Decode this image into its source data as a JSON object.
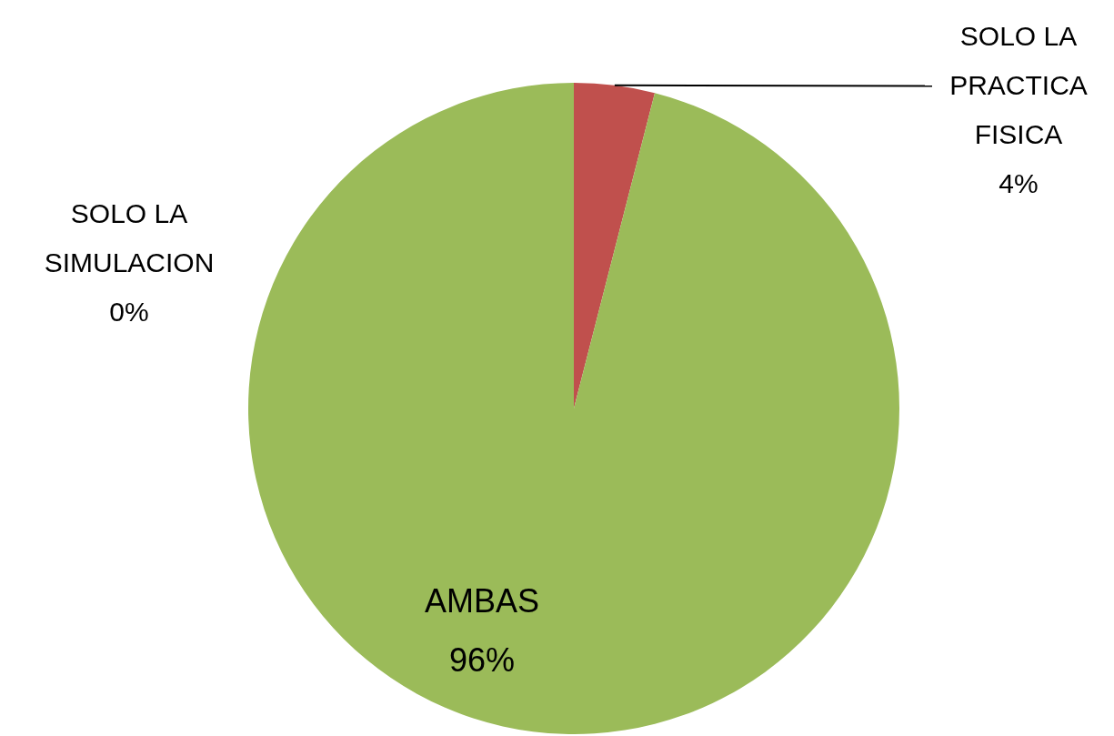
{
  "chart_data": {
    "type": "pie",
    "categories": [
      "SOLO LA SIMULACION",
      "SOLO LA PRACTICA FISICA",
      "AMBAS"
    ],
    "values": [
      0,
      4,
      96
    ],
    "value_labels": [
      "0%",
      "4%",
      "96%"
    ],
    "colors": [
      "#4f81bd",
      "#c0504d",
      "#9bbb59"
    ],
    "legend": false
  }
}
